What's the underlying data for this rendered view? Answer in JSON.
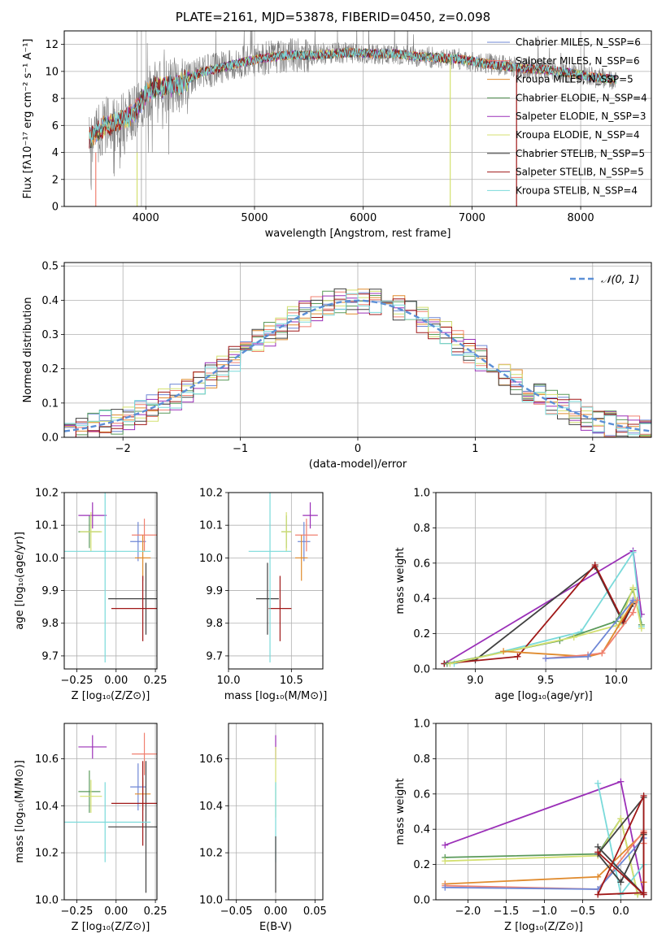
{
  "title": "PLATE=2161, MJD=53878, FIBERID=0450, z=0.098",
  "colors": {
    "chabrier_miles": "#6f87d6",
    "salpeter_miles": "#f08070",
    "kroupa_miles": "#e08b2e",
    "chabrier_elodie": "#5a9a5a",
    "salpeter_elodie": "#9b30b8",
    "kroupa_elodie": "#d4e070",
    "chabrier_stelib": "#404040",
    "salpeter_stelib": "#a01818",
    "kroupa_stelib": "#7adada",
    "data": "#808080",
    "normal": "#5b8fd6",
    "grid": "#b0b0b0"
  },
  "chart_data": [
    {
      "type": "line",
      "xlabel": "wavelength [Angstrom, rest frame]",
      "ylabel": "Flux [fλ10⁻¹⁷ erg cm⁻² s⁻¹ A⁻¹]",
      "xlim": [
        3250,
        8650
      ],
      "ylim": [
        0,
        13
      ],
      "xticks": [
        "4000",
        "5000",
        "6000",
        "7000",
        "8000"
      ],
      "yticks": [
        "0",
        "2",
        "4",
        "6",
        "8",
        "10",
        "12"
      ],
      "legend_placement": "right",
      "legend": [
        {
          "label": "Chabrier MILES, N_SSP=6",
          "color_key": "chabrier_miles"
        },
        {
          "label": "Salpeter MILES, N_SSP=6",
          "color_key": "salpeter_miles"
        },
        {
          "label": "Kroupa MILES, N_SSP=5",
          "color_key": "kroupa_miles"
        },
        {
          "label": "Chabrier ELODIE, N_SSP=4",
          "color_key": "chabrier_elodie"
        },
        {
          "label": "Salpeter ELODIE, N_SSP=3",
          "color_key": "salpeter_elodie"
        },
        {
          "label": "Kroupa ELODIE, N_SSP=4",
          "color_key": "kroupa_elodie"
        },
        {
          "label": "Chabrier STELIB, N_SSP=5",
          "color_key": "chabrier_stelib"
        },
        {
          "label": "Salpeter STELIB, N_SSP=5",
          "color_key": "salpeter_stelib"
        },
        {
          "label": "Kroupa STELIB, N_SSP=4",
          "color_key": "kroupa_stelib"
        }
      ],
      "continuum": [
        [
          3480,
          5.0
        ],
        [
          3600,
          5.8
        ],
        [
          3700,
          6.2
        ],
        [
          3800,
          6.5
        ],
        [
          3900,
          7.0
        ],
        [
          4000,
          8.4
        ],
        [
          4100,
          8.8
        ],
        [
          4300,
          9.0
        ],
        [
          4500,
          9.9
        ],
        [
          4700,
          10.3
        ],
        [
          4900,
          10.7
        ],
        [
          5100,
          11.0
        ],
        [
          5300,
          11.2
        ],
        [
          5500,
          11.2
        ],
        [
          5700,
          11.3
        ],
        [
          5900,
          11.4
        ],
        [
          6100,
          11.3
        ],
        [
          6300,
          11.3
        ],
        [
          6500,
          11.1
        ],
        [
          6700,
          11.0
        ],
        [
          6900,
          10.9
        ],
        [
          7100,
          10.6
        ],
        [
          7300,
          10.4
        ],
        [
          7500,
          10.2
        ],
        [
          7700,
          10.1
        ],
        [
          7900,
          9.9
        ],
        [
          8100,
          9.6
        ],
        [
          8300,
          9.4
        ]
      ],
      "spikes": [
        [
          3950,
          0.4
        ],
        [
          3920,
          0.2
        ],
        [
          3550,
          0.3
        ],
        [
          6800,
          0.0
        ],
        [
          7410,
          0.0
        ]
      ]
    },
    {
      "type": "line",
      "xlabel": "(data-model)/error",
      "ylabel": "Normed distribution",
      "xlim": [
        -2.5,
        2.5
      ],
      "ylim": [
        0,
        0.51
      ],
      "xticks": [
        "−2",
        "−1",
        "0",
        "1",
        "2"
      ],
      "yticks": [
        "0.0",
        "0.1",
        "0.2",
        "0.3",
        "0.4",
        "0.5"
      ],
      "legend_placement": "top-right",
      "legend": [
        {
          "label": "𝒩(0, 1)",
          "color_key": "normal"
        }
      ],
      "bin_width": 0.1
    },
    {
      "type": "scatter",
      "xlabel": "Z [log₁₀(Z/Z⊙)]",
      "ylabel": "age  [log₁₀(age/yr)]",
      "xlim": [
        -0.33,
        0.26
      ],
      "ylim": [
        9.66,
        10.2
      ],
      "xticks": [
        "−0.25",
        "0.00",
        "0.25"
      ],
      "yticks": [
        "9.7",
        "9.8",
        "9.9",
        "10.0",
        "10.1",
        "10.2"
      ],
      "points": [
        {
          "key": "chabrier_miles",
          "x": 0.14,
          "y": 10.05,
          "xerr": 0.05,
          "yerr": 0.06
        },
        {
          "key": "salpeter_miles",
          "x": 0.18,
          "y": 10.07,
          "xerr": 0.08,
          "yerr": 0.05
        },
        {
          "key": "kroupa_miles",
          "x": 0.17,
          "y": 10.0,
          "xerr": 0.05,
          "yerr": 0.07
        },
        {
          "key": "chabrier_elodie",
          "x": -0.17,
          "y": 10.08,
          "xerr": 0.07,
          "yerr": 0.05
        },
        {
          "key": "salpeter_elodie",
          "x": -0.15,
          "y": 10.13,
          "xerr": 0.09,
          "yerr": 0.04
        },
        {
          "key": "kroupa_elodie",
          "x": -0.16,
          "y": 10.08,
          "xerr": 0.07,
          "yerr": 0.06
        },
        {
          "key": "chabrier_stelib",
          "x": 0.19,
          "y": 9.875,
          "xerr": 0.24,
          "yerr": 0.11
        },
        {
          "key": "salpeter_stelib",
          "x": 0.17,
          "y": 9.845,
          "xerr": 0.2,
          "yerr": 0.1
        },
        {
          "key": "kroupa_stelib",
          "x": -0.07,
          "y": 10.02,
          "xerr": 0.29,
          "yerr": 0.34
        }
      ]
    },
    {
      "type": "scatter",
      "xlabel": "mass [log₁₀(M/M⊙)]",
      "ylabel": "",
      "xlim": [
        10.0,
        10.75
      ],
      "ylim": [
        9.66,
        10.2
      ],
      "xticks": [
        "10.0",
        "10.5"
      ],
      "yticks": [
        "9.7",
        "9.8",
        "9.9",
        "10.0",
        "10.1",
        "10.2"
      ],
      "points": [
        {
          "key": "chabrier_miles",
          "x": 10.6,
          "y": 10.05,
          "xerr": 0.05,
          "yerr": 0.06
        },
        {
          "key": "salpeter_miles",
          "x": 10.62,
          "y": 10.07,
          "xerr": 0.09,
          "yerr": 0.05
        },
        {
          "key": "kroupa_miles",
          "x": 10.58,
          "y": 10.0,
          "xerr": 0.05,
          "yerr": 0.07
        },
        {
          "key": "chabrier_elodie",
          "x": 10.46,
          "y": 10.08,
          "xerr": 0.04,
          "yerr": 0.05
        },
        {
          "key": "salpeter_elodie",
          "x": 10.65,
          "y": 10.13,
          "xerr": 0.06,
          "yerr": 0.04
        },
        {
          "key": "kroupa_elodie",
          "x": 10.46,
          "y": 10.08,
          "xerr": 0.04,
          "yerr": 0.06
        },
        {
          "key": "chabrier_stelib",
          "x": 10.31,
          "y": 9.875,
          "xerr": 0.09,
          "yerr": 0.11
        },
        {
          "key": "salpeter_stelib",
          "x": 10.41,
          "y": 9.845,
          "xerr": 0.09,
          "yerr": 0.1
        },
        {
          "key": "kroupa_stelib",
          "x": 10.33,
          "y": 10.02,
          "xerr": 0.17,
          "yerr": 0.34
        }
      ]
    },
    {
      "type": "line",
      "xlabel": "age  [log₁₀(age/yr)]",
      "ylabel": "mass weight",
      "xlim": [
        8.72,
        10.25
      ],
      "ylim": [
        0,
        1
      ],
      "xticks": [
        "9.0",
        "9.5",
        "10.0"
      ],
      "yticks": [
        "0.0",
        "0.2",
        "0.4",
        "0.6",
        "0.8",
        "1.0"
      ],
      "series": [
        {
          "key": "salpeter_elodie",
          "x": [
            8.78,
            10.12,
            10.18
          ],
          "y": [
            0.03,
            0.67,
            0.31
          ]
        },
        {
          "key": "kroupa_stelib",
          "x": [
            8.85,
            9.75,
            10.12,
            10.18
          ],
          "y": [
            0.03,
            0.21,
            0.66,
            0.24
          ]
        },
        {
          "key": "chabrier_stelib",
          "x": [
            8.78,
            9.0,
            9.85,
            10.05,
            10.12
          ],
          "y": [
            0.03,
            0.05,
            0.58,
            0.26,
            0.37
          ]
        },
        {
          "key": "salpeter_stelib",
          "x": [
            8.78,
            9.3,
            9.85,
            10.05,
            10.12
          ],
          "y": [
            0.03,
            0.07,
            0.59,
            0.27,
            0.38
          ]
        },
        {
          "key": "chabrier_elodie",
          "x": [
            8.8,
            9.6,
            10.0,
            10.12,
            10.18
          ],
          "y": [
            0.03,
            0.16,
            0.27,
            0.45,
            0.25
          ]
        },
        {
          "key": "kroupa_elodie",
          "x": [
            8.82,
            9.7,
            10.02,
            10.12,
            10.18
          ],
          "y": [
            0.03,
            0.18,
            0.25,
            0.46,
            0.23
          ]
        },
        {
          "key": "kroupa_miles",
          "x": [
            9.2,
            9.8,
            9.9,
            10.12
          ],
          "y": [
            0.1,
            0.07,
            0.09,
            0.38
          ]
        },
        {
          "key": "salpeter_miles",
          "x": [
            9.5,
            9.8,
            9.9,
            10.12,
            10.15
          ],
          "y": [
            0.06,
            0.08,
            0.09,
            0.32,
            0.39
          ]
        },
        {
          "key": "chabrier_miles",
          "x": [
            9.5,
            9.8,
            10.12
          ],
          "y": [
            0.06,
            0.07,
            0.39
          ]
        }
      ]
    },
    {
      "type": "scatter",
      "xlabel": "Z [log₁₀(Z/Z⊙)]",
      "ylabel": "mass [log₁₀(M/M⊙)]",
      "xlim": [
        -0.33,
        0.26
      ],
      "ylim": [
        10.0,
        10.75
      ],
      "xticks": [
        "−0.25",
        "0.00",
        "0.25"
      ],
      "yticks": [
        "10.0",
        "10.2",
        "10.4",
        "10.6"
      ],
      "points": [
        {
          "key": "chabrier_miles",
          "x": 0.14,
          "y": 10.48,
          "xerr": 0.05,
          "yerr": 0.1
        },
        {
          "key": "salpeter_miles",
          "x": 0.18,
          "y": 10.62,
          "xerr": 0.08,
          "yerr": 0.09
        },
        {
          "key": "kroupa_miles",
          "x": 0.17,
          "y": 10.45,
          "xerr": 0.05,
          "yerr": 0.07
        },
        {
          "key": "chabrier_elodie",
          "x": -0.17,
          "y": 10.46,
          "xerr": 0.07,
          "yerr": 0.09
        },
        {
          "key": "salpeter_elodie",
          "x": -0.15,
          "y": 10.65,
          "xerr": 0.09,
          "yerr": 0.05
        },
        {
          "key": "kroupa_elodie",
          "x": -0.16,
          "y": 10.44,
          "xerr": 0.07,
          "yerr": 0.07
        },
        {
          "key": "chabrier_stelib",
          "x": 0.19,
          "y": 10.31,
          "xerr": 0.24,
          "yerr": 0.28
        },
        {
          "key": "salpeter_stelib",
          "x": 0.17,
          "y": 10.41,
          "xerr": 0.2,
          "yerr": 0.18
        },
        {
          "key": "kroupa_stelib",
          "x": -0.07,
          "y": 10.33,
          "xerr": 0.29,
          "yerr": 0.17
        }
      ]
    },
    {
      "type": "scatter",
      "xlabel": "E(B-V)",
      "ylabel": "",
      "xlim": [
        -0.06,
        0.06
      ],
      "ylim": [
        10.0,
        10.75
      ],
      "xticks": [
        "−0.05",
        "0.00",
        "0.05"
      ],
      "yticks": [
        "10.0",
        "10.2",
        "10.4",
        "10.6"
      ],
      "points": [
        {
          "key": "salpeter_elodie",
          "x": 0.0,
          "y": 10.65,
          "xerr": 0,
          "yerr": 0.05
        },
        {
          "key": "kroupa_elodie",
          "x": 0.0,
          "y": 10.5,
          "xerr": 0,
          "yerr": 0.15
        },
        {
          "key": "kroupa_stelib",
          "x": 0.0,
          "y": 10.33,
          "xerr": 0,
          "yerr": 0.17
        },
        {
          "key": "chabrier_stelib",
          "x": 0.0,
          "y": 10.15,
          "xerr": 0,
          "yerr": 0.12
        }
      ]
    },
    {
      "type": "line",
      "xlabel": "Z [log₁₀(Z/Z⊙)]",
      "ylabel": "mass weight",
      "xlim": [
        -2.42,
        0.4
      ],
      "ylim": [
        0,
        1
      ],
      "xticks": [
        "−2.0",
        "−1.5",
        "−1.0",
        "−0.5",
        "0.0"
      ],
      "yticks": [
        "0.0",
        "0.2",
        "0.4",
        "0.6",
        "0.8",
        "1.0"
      ],
      "series": [
        {
          "key": "salpeter_elodie",
          "x": [
            -2.3,
            0.0,
            0.3
          ],
          "y": [
            0.31,
            0.67,
            0.03
          ]
        },
        {
          "key": "chabrier_elodie",
          "x": [
            -2.3,
            -0.3,
            0.0,
            0.22
          ],
          "y": [
            0.24,
            0.26,
            0.46,
            0.03
          ]
        },
        {
          "key": "kroupa_elodie",
          "x": [
            -2.3,
            -0.3,
            0.0,
            0.22
          ],
          "y": [
            0.22,
            0.25,
            0.46,
            0.03
          ]
        },
        {
          "key": "kroupa_miles",
          "x": [
            -2.3,
            -0.3,
            0.3,
            0.3
          ],
          "y": [
            0.09,
            0.13,
            0.38,
            0.1
          ]
        },
        {
          "key": "salpeter_miles",
          "x": [
            -2.3,
            -0.3,
            0.3,
            0.3
          ],
          "y": [
            0.08,
            0.06,
            0.39,
            0.32
          ]
        },
        {
          "key": "chabrier_miles",
          "x": [
            -2.3,
            -0.3,
            0.3
          ],
          "y": [
            0.07,
            0.06,
            0.35
          ]
        },
        {
          "key": "kroupa_stelib",
          "x": [
            -0.3,
            0.0,
            0.3
          ],
          "y": [
            0.66,
            0.03,
            0.2
          ]
        },
        {
          "key": "chabrier_stelib",
          "x": [
            -0.3,
            0.3,
            0.3,
            -0.3,
            0.0,
            0.3
          ],
          "y": [
            0.3,
            0.03,
            0.58,
            0.26,
            0.1,
            0.37
          ]
        },
        {
          "key": "salpeter_stelib",
          "x": [
            -0.3,
            0.3,
            0.3,
            -0.3,
            0.3,
            0.3
          ],
          "y": [
            0.27,
            0.03,
            0.59,
            0.03,
            0.04,
            0.38
          ]
        }
      ]
    }
  ]
}
